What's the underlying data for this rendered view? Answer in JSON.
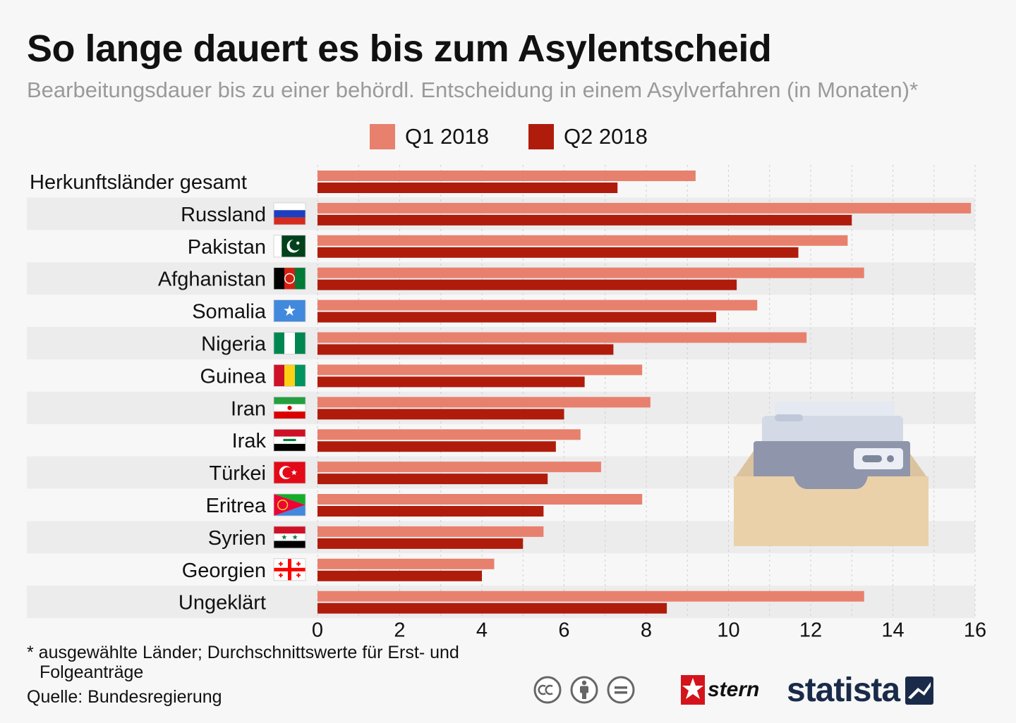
{
  "header": {
    "title": "So lange dauert es bis zum Asylentscheid",
    "subtitle": "Bearbeitungsdauer bis zu einer behördl. Entscheidung in einem Asylverfahren (in Monaten)*"
  },
  "legend": [
    {
      "label": "Q1 2018",
      "color": "#e8806e"
    },
    {
      "label": "Q2 2018",
      "color": "#b01c0c"
    }
  ],
  "footer": {
    "footnote_line1": "* ausgewählte Länder; Durchschnittswerte für Erst- und",
    "footnote_line2": "Folgeanträge",
    "source": "Quelle: Bundesregierung",
    "partner": "stern",
    "brand": "statista"
  },
  "colors": {
    "q1": "#e8806e",
    "q2": "#b01c0c",
    "stripe": "#ececec",
    "grid": "#cfcfcf"
  },
  "chart_data": {
    "type": "bar",
    "orientation": "horizontal",
    "categories": [
      "Herkunftsländer gesamt",
      "Russland",
      "Pakistan",
      "Afghanistan",
      "Somalia",
      "Nigeria",
      "Guinea",
      "Iran",
      "Irak",
      "Türkei",
      "Eritrea",
      "Syrien",
      "Georgien",
      "Ungeklärt"
    ],
    "flags": [
      null,
      "russia-flag",
      "pakistan-flag",
      "afghanistan-flag",
      "somalia-flag",
      "nigeria-flag",
      "guinea-flag",
      "iran-flag",
      "iraq-flag",
      "turkey-flag",
      "eritrea-flag",
      "syria-flag",
      "georgia-flag",
      null
    ],
    "series": [
      {
        "name": "Q1 2018",
        "values": [
          9.2,
          15.9,
          12.9,
          13.3,
          10.7,
          11.9,
          7.9,
          8.1,
          6.4,
          6.9,
          7.9,
          5.5,
          4.3,
          13.3
        ]
      },
      {
        "name": "Q2 2018",
        "values": [
          7.3,
          13.0,
          11.7,
          10.2,
          9.7,
          7.2,
          6.5,
          6.0,
          5.8,
          5.6,
          5.5,
          5.0,
          4.0,
          8.5
        ]
      }
    ],
    "xlim": [
      0,
      16
    ],
    "xticks": [
      0,
      2,
      4,
      6,
      8,
      10,
      12,
      14,
      16
    ],
    "xlabel": "",
    "ylabel": "",
    "grid": true,
    "legend_position": "top-center"
  }
}
